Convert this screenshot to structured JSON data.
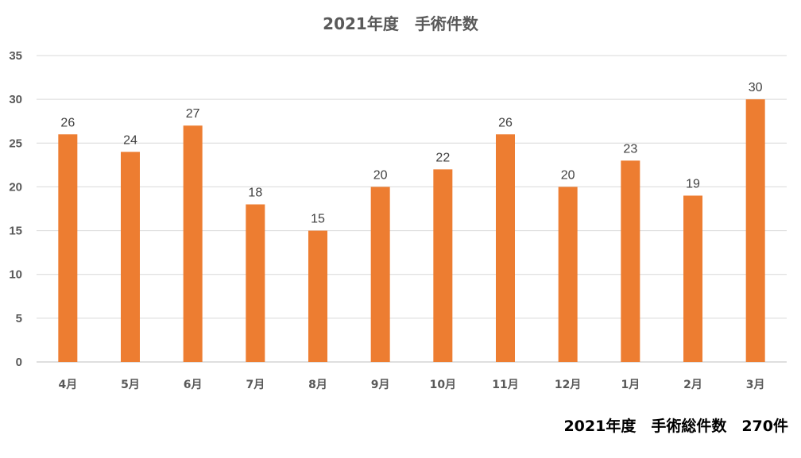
{
  "chart_data": {
    "type": "bar",
    "title": "2021年度　手術件数",
    "categories": [
      "4月",
      "5月",
      "6月",
      "7月",
      "8月",
      "9月",
      "10月",
      "11月",
      "12月",
      "1月",
      "2月",
      "3月"
    ],
    "values": [
      26,
      24,
      27,
      18,
      15,
      20,
      22,
      26,
      20,
      23,
      19,
      30
    ],
    "ylim": [
      0,
      35
    ],
    "yticks": [
      0,
      5,
      10,
      15,
      20,
      25,
      30,
      35
    ],
    "grid": true,
    "bar_color": "#ED7D31",
    "data_labels": true
  },
  "footer": {
    "note": "2021年度　手術総件数　270件"
  }
}
